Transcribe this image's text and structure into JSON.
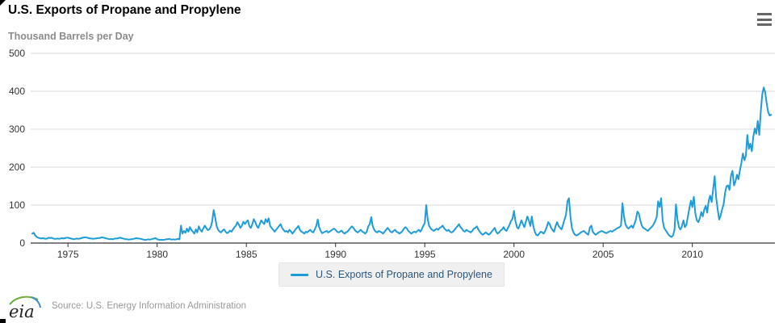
{
  "header": {
    "title": "U.S. Exports of Propane and Propylene"
  },
  "subtitle": "Thousand Barrels per Day",
  "menu": {
    "icon": "hamburger-menu-icon",
    "purpose": "chart export/context menu"
  },
  "legend": {
    "label": "U.S. Exports of Propane and Propylene"
  },
  "footer": {
    "logo_text": "eia",
    "source": "Source: U.S. Energy Information Administration"
  },
  "colors": {
    "line": "#1e9cd8",
    "grid": "#d8d8d8",
    "axis": "#000000",
    "tick_label": "#333333",
    "legend_bg": "#f0f0f0",
    "legend_text": "#29567b",
    "subtitle_text": "#8b8b8b",
    "source_text": "#9a9a9a"
  },
  "chart_data": {
    "type": "line",
    "title": "U.S. Exports of Propane and Propylene",
    "ylabel": "Thousand Barrels per Day",
    "xlabel": "",
    "legend_position": "bottom-center",
    "grid": true,
    "ylim": [
      0,
      500
    ],
    "yticks": [
      0,
      100,
      200,
      300,
      400,
      500
    ],
    "xticks": [
      1975,
      1980,
      1985,
      1990,
      1995,
      2000,
      2005,
      2010
    ],
    "x_range": [
      1973.0,
      2014.5
    ],
    "frequency": "monthly",
    "start_year": 1973,
    "series": [
      {
        "name": "U.S. Exports of Propane and Propylene",
        "color": "#1e9cd8",
        "values": [
          25,
          27,
          20,
          16,
          14,
          13,
          12,
          13,
          12,
          11,
          12,
          14,
          13,
          14,
          12,
          11,
          11,
          12,
          11,
          12,
          13,
          12,
          13,
          14,
          14,
          13,
          12,
          11,
          10,
          11,
          12,
          11,
          12,
          13,
          14,
          15,
          15,
          14,
          13,
          12,
          12,
          11,
          12,
          12,
          13,
          13,
          14,
          15,
          14,
          13,
          12,
          11,
          10,
          11,
          10,
          11,
          12,
          12,
          13,
          14,
          13,
          12,
          11,
          10,
          10,
          9,
          10,
          10,
          11,
          12,
          13,
          12,
          12,
          11,
          10,
          9,
          8,
          9,
          10,
          9,
          10,
          11,
          12,
          13,
          10,
          9,
          8,
          9,
          8,
          9,
          10,
          10,
          11,
          10,
          9,
          10,
          9,
          10,
          11,
          10,
          46,
          25,
          32,
          27,
          38,
          30,
          42,
          35,
          30,
          25,
          36,
          28,
          44,
          35,
          30,
          38,
          46,
          40,
          34,
          36,
          42,
          56,
          87,
          68,
          45,
          35,
          30,
          28,
          33,
          36,
          30,
          26,
          28,
          33,
          30,
          36,
          42,
          46,
          55,
          48,
          40,
          46,
          56,
          50,
          56,
          60,
          45,
          40,
          50,
          63,
          55,
          45,
          40,
          50,
          60,
          54,
          50,
          63,
          55,
          65,
          45,
          40,
          35,
          30,
          35,
          40,
          45,
          50,
          40,
          35,
          30,
          32,
          28,
          35,
          30,
          25,
          30,
          36,
          40,
          45,
          35,
          30,
          28,
          25,
          30,
          28,
          32,
          35,
          30,
          28,
          36,
          45,
          62,
          42,
          32,
          26,
          28,
          30,
          32,
          28,
          30,
          33,
          36,
          38,
          35,
          30,
          28,
          30,
          33,
          28,
          25,
          28,
          30,
          35,
          40,
          44,
          40,
          34,
          30,
          28,
          32,
          35,
          30,
          28,
          25,
          30,
          44,
          50,
          68,
          45,
          35,
          30,
          28,
          32,
          30,
          28,
          25,
          30,
          35,
          40,
          35,
          30,
          28,
          32,
          35,
          30,
          28,
          25,
          28,
          32,
          38,
          42,
          38,
          32,
          28,
          25,
          28,
          30,
          28,
          32,
          35,
          30,
          36,
          46,
          52,
          100,
          62,
          45,
          38,
          35,
          32,
          35,
          38,
          35,
          40,
          42,
          46,
          40,
          35,
          32,
          35,
          30,
          28,
          30,
          35,
          40,
          44,
          50,
          42,
          38,
          32,
          30,
          35,
          32,
          30,
          28,
          32,
          38,
          40,
          44,
          36,
          30,
          25,
          22,
          25,
          28,
          25,
          22,
          25,
          30,
          35,
          40,
          30,
          25,
          28,
          33,
          36,
          42,
          35,
          32,
          40,
          48,
          58,
          64,
          85,
          58,
          42,
          38,
          48,
          60,
          50,
          42,
          56,
          70,
          60,
          45,
          70,
          45,
          30,
          22,
          20,
          25,
          30,
          28,
          25,
          32,
          42,
          55,
          50,
          40,
          34,
          30,
          45,
          55,
          45,
          40,
          36,
          48,
          62,
          75,
          110,
          118,
          70,
          40,
          28,
          22,
          20,
          22,
          25,
          28,
          30,
          32,
          28,
          25,
          22,
          40,
          46,
          30,
          25,
          22,
          25,
          28,
          30,
          32,
          30,
          28,
          26,
          28,
          30,
          32,
          30,
          33,
          35,
          38,
          40,
          42,
          46,
          105,
          70,
          50,
          42,
          38,
          42,
          46,
          40,
          50,
          62,
          83,
          78,
          60,
          46,
          40,
          38,
          35,
          32,
          36,
          40,
          44,
          50,
          58,
          68,
          110,
          95,
          118,
          60,
          40,
          34,
          28,
          22,
          18,
          16,
          20,
          35,
          102,
          62,
          42,
          36,
          45,
          60,
          42,
          48,
          70,
          92,
          112,
          95,
          122,
          78,
          60,
          55,
          65,
          82,
          70,
          88,
          98,
          80,
          112,
          125,
          108,
          142,
          176,
          120,
          90,
          62,
          72,
          88,
          102,
          132,
          150,
          152,
          140,
          178,
          190,
          152,
          162,
          180,
          168,
          192,
          212,
          236,
          218,
          230,
          285,
          248,
          262,
          242,
          280,
          302,
          288,
          322,
          285,
          345,
          392,
          410,
          398,
          368,
          345,
          336,
          338
        ]
      }
    ]
  }
}
